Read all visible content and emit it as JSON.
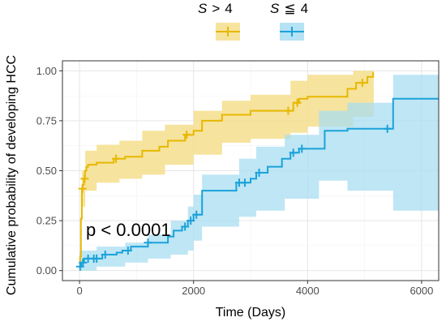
{
  "chart_data": {
    "type": "line",
    "subtype": "kaplan-meier cumulative incidence",
    "title": "",
    "xlabel": "Time (Days)",
    "ylabel": "Cumulative probability of developing HCC",
    "xlim": [
      -300,
      6300
    ],
    "ylim": [
      -0.05,
      1.05
    ],
    "x_ticks": [
      0,
      2000,
      4000,
      6000
    ],
    "y_ticks": [
      0,
      0.25,
      0.5,
      0.75,
      1.0
    ],
    "x_tick_labels": [
      "0",
      "2000",
      "4000",
      "6000"
    ],
    "y_tick_labels": [
      "0.00",
      "0.25",
      "0.50",
      "0.75",
      "1.00"
    ],
    "grid": true,
    "legend_position": "top",
    "annotation": "p < 0.0001",
    "series": [
      {
        "name_prefix": "S",
        "name_operator": ">",
        "name_value": "4",
        "color": "#E7B800",
        "fill": "#F5DE8C",
        "steps": [
          [
            0,
            0.02
          ],
          [
            10,
            0.07
          ],
          [
            25,
            0.26
          ],
          [
            40,
            0.41
          ],
          [
            55,
            0.43
          ],
          [
            75,
            0.46
          ],
          [
            95,
            0.5
          ],
          [
            120,
            0.52
          ],
          [
            150,
            0.53
          ],
          [
            300,
            0.54
          ],
          [
            600,
            0.56
          ],
          [
            800,
            0.57
          ],
          [
            1100,
            0.6
          ],
          [
            1400,
            0.62
          ],
          [
            1550,
            0.65
          ],
          [
            1850,
            0.68
          ],
          [
            2000,
            0.7
          ],
          [
            2150,
            0.75
          ],
          [
            2500,
            0.78
          ],
          [
            3000,
            0.8
          ],
          [
            3750,
            0.84
          ],
          [
            3850,
            0.86
          ],
          [
            4000,
            0.87
          ],
          [
            4700,
            0.91
          ],
          [
            4850,
            0.94
          ],
          [
            5050,
            0.97
          ],
          [
            5150,
            0.99
          ]
        ],
        "end_x": 5160,
        "lower": [
          [
            0,
            0.0
          ],
          [
            40,
            0.32
          ],
          [
            100,
            0.4
          ],
          [
            300,
            0.44
          ],
          [
            700,
            0.46
          ],
          [
            1100,
            0.48
          ],
          [
            1500,
            0.53
          ],
          [
            2000,
            0.58
          ],
          [
            2500,
            0.64
          ],
          [
            3000,
            0.66
          ],
          [
            3700,
            0.69
          ],
          [
            4000,
            0.72
          ],
          [
            4800,
            0.77
          ],
          [
            5160,
            0.8
          ]
        ],
        "upper": [
          [
            0,
            0.05
          ],
          [
            40,
            0.5
          ],
          [
            100,
            0.6
          ],
          [
            300,
            0.63
          ],
          [
            700,
            0.65
          ],
          [
            1100,
            0.7
          ],
          [
            1500,
            0.73
          ],
          [
            2000,
            0.8
          ],
          [
            2500,
            0.85
          ],
          [
            3000,
            0.88
          ],
          [
            3700,
            0.95
          ],
          [
            4000,
            0.98
          ],
          [
            4800,
            1.0
          ],
          [
            5160,
            1.0
          ]
        ],
        "censor_x": [
          50,
          90,
          640,
          1880,
          3660,
          3820,
          4960
        ]
      },
      {
        "name_prefix": "S",
        "name_operator": "≦",
        "name_value": "4",
        "color": "#1BA2D9",
        "fill": "#A8DDF2",
        "steps": [
          [
            0,
            0.02
          ],
          [
            30,
            0.04
          ],
          [
            80,
            0.06
          ],
          [
            400,
            0.08
          ],
          [
            650,
            0.09
          ],
          [
            750,
            0.1
          ],
          [
            900,
            0.12
          ],
          [
            1200,
            0.14
          ],
          [
            1550,
            0.17
          ],
          [
            1650,
            0.2
          ],
          [
            1800,
            0.22
          ],
          [
            1900,
            0.25
          ],
          [
            2000,
            0.28
          ],
          [
            2150,
            0.4
          ],
          [
            2750,
            0.44
          ],
          [
            3000,
            0.46
          ],
          [
            3100,
            0.49
          ],
          [
            3300,
            0.52
          ],
          [
            3550,
            0.56
          ],
          [
            3700,
            0.59
          ],
          [
            3850,
            0.61
          ],
          [
            4300,
            0.7
          ],
          [
            4700,
            0.71
          ],
          [
            5500,
            0.86
          ]
        ],
        "end_x": 6300,
        "lower": [
          [
            0,
            0.0
          ],
          [
            300,
            0.02
          ],
          [
            800,
            0.04
          ],
          [
            1200,
            0.06
          ],
          [
            1600,
            0.08
          ],
          [
            1900,
            0.1
          ],
          [
            2000,
            0.15
          ],
          [
            2150,
            0.22
          ],
          [
            2800,
            0.27
          ],
          [
            3100,
            0.3
          ],
          [
            3600,
            0.36
          ],
          [
            4200,
            0.45
          ],
          [
            4700,
            0.4
          ],
          [
            5500,
            0.3
          ],
          [
            6300,
            0.3
          ]
        ],
        "upper": [
          [
            0,
            0.1
          ],
          [
            300,
            0.12
          ],
          [
            800,
            0.14
          ],
          [
            1200,
            0.18
          ],
          [
            1600,
            0.25
          ],
          [
            1900,
            0.32
          ],
          [
            2000,
            0.38
          ],
          [
            2150,
            0.48
          ],
          [
            2800,
            0.56
          ],
          [
            3100,
            0.62
          ],
          [
            3600,
            0.68
          ],
          [
            4200,
            0.8
          ],
          [
            4700,
            0.84
          ],
          [
            5500,
            0.98
          ],
          [
            6300,
            0.98
          ]
        ],
        "censor_x": [
          10,
          60,
          150,
          250,
          300,
          450,
          850,
          1200,
          1850,
          1950,
          2050,
          2800,
          2900,
          3150,
          3750,
          3900,
          5400
        ]
      }
    ]
  }
}
